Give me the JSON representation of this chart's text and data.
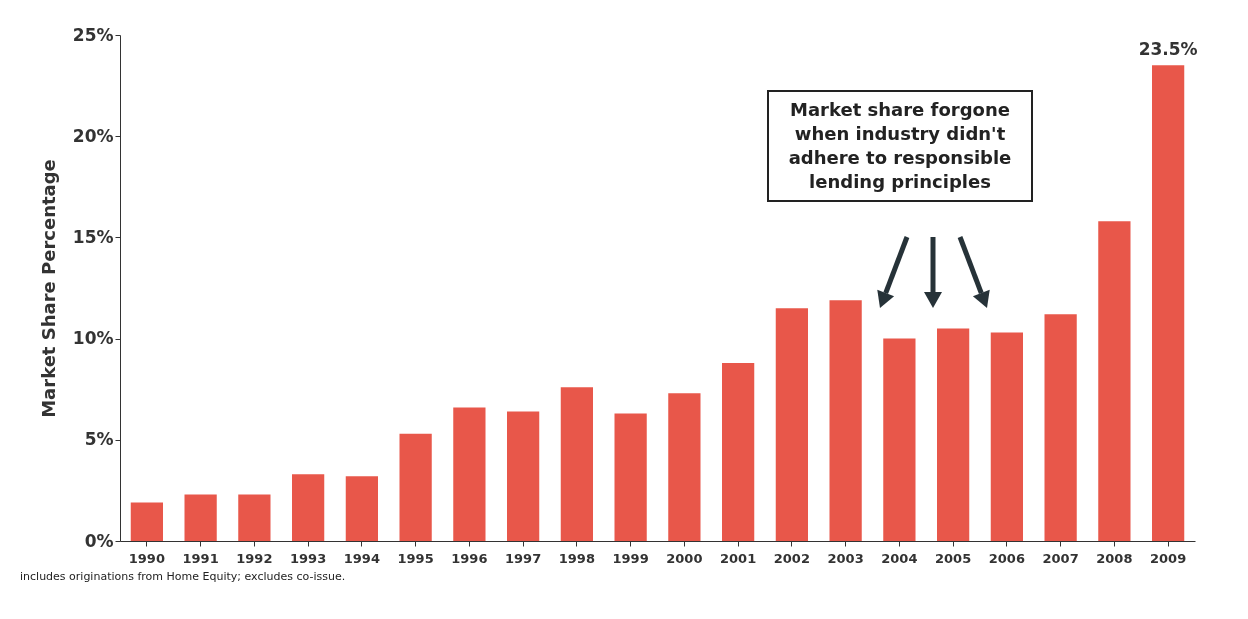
{
  "chart_data": {
    "type": "bar",
    "ylabel": "Market Share Percentage",
    "categories": [
      "1990",
      "1991",
      "1992",
      "1993",
      "1994",
      "1995",
      "1996",
      "1997",
      "1998",
      "1999",
      "2000",
      "2001",
      "2002",
      "2003",
      "2004",
      "2005",
      "2006",
      "2007",
      "2008",
      "2009"
    ],
    "values": [
      1.9,
      2.3,
      2.3,
      3.3,
      3.2,
      5.3,
      6.6,
      6.4,
      7.6,
      6.3,
      7.3,
      8.8,
      11.5,
      11.9,
      10.0,
      10.5,
      10.3,
      11.2,
      15.8,
      23.5
    ],
    "value_labels": [
      null,
      null,
      null,
      null,
      null,
      null,
      null,
      null,
      null,
      null,
      null,
      null,
      null,
      null,
      null,
      null,
      null,
      null,
      null,
      "23.5%"
    ],
    "color": "#e8574a",
    "ylim": [
      0,
      25
    ],
    "yticks": [
      {
        "value": 0,
        "label": "0%"
      },
      {
        "value": 5,
        "label": "5%"
      },
      {
        "value": 10,
        "label": "10%"
      },
      {
        "value": 15,
        "label": "15%"
      },
      {
        "value": 20,
        "label": "20%"
      },
      {
        "value": 25,
        "label": "25%"
      }
    ],
    "annotations": [
      "Market share forgone when industry didn't adhere to responsible lending principles",
      "includes originations from Home Equity; excludes co-issue."
    ]
  }
}
